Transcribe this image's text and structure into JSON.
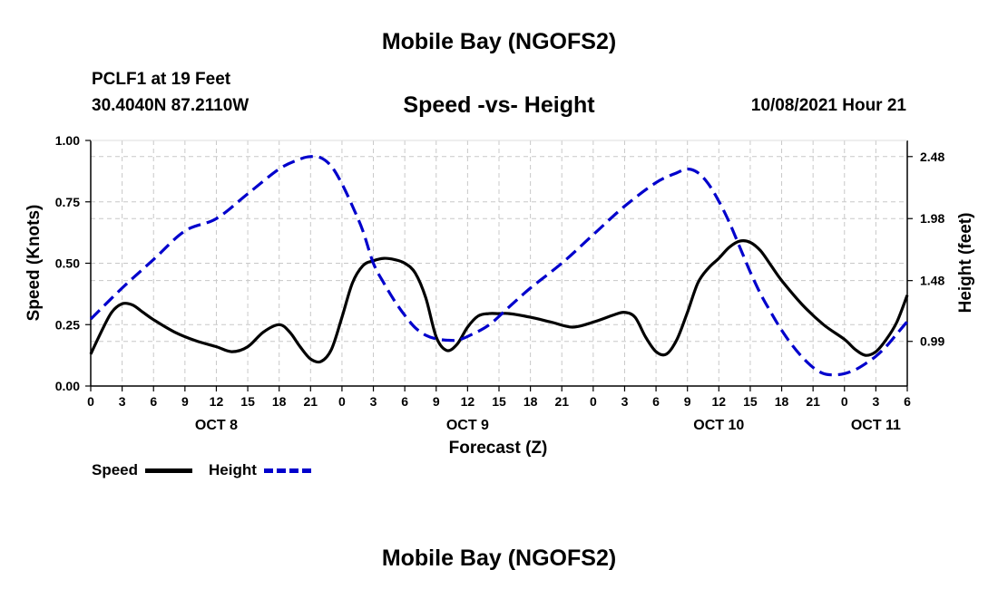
{
  "header": {
    "top_title": "Mobile Bay (NGOFS2)",
    "station": "PCLF1 at 19 Feet",
    "coords": "30.4040N  87.2110W",
    "plot_title": "Speed -vs- Height",
    "valid_time": "10/08/2021 Hour 21",
    "bottom_title": "Mobile Bay (NGOFS2)"
  },
  "legend": {
    "speed_label": "Speed",
    "height_label": "Height"
  },
  "colors": {
    "speed": "#000000",
    "height": "#0000cc",
    "grid": "#c8c8c8"
  },
  "chart_data": {
    "type": "line",
    "title": "Speed -vs- Height",
    "xlabel": "Forecast (Z)",
    "ylabel": "Speed (Knots)",
    "y2label": "Height (feet)",
    "xlim": [
      0,
      78
    ],
    "ylim": [
      0,
      1.0
    ],
    "y2lim": [
      0.63,
      2.61
    ],
    "grid": true,
    "x_ticks": [
      0,
      3,
      6,
      9,
      12,
      15,
      18,
      21,
      24,
      27,
      30,
      33,
      36,
      39,
      42,
      45,
      48,
      51,
      54,
      57,
      60,
      63,
      66,
      69,
      72,
      75,
      78
    ],
    "x_tick_labels": [
      "0",
      "3",
      "6",
      "9",
      "12",
      "15",
      "18",
      "21",
      "0",
      "3",
      "6",
      "9",
      "12",
      "15",
      "18",
      "21",
      "0",
      "3",
      "6",
      "9",
      "12",
      "15",
      "18",
      "21",
      "0",
      "3",
      "6"
    ],
    "day_labels": [
      {
        "x": 12,
        "label": "OCT 8"
      },
      {
        "x": 36,
        "label": "OCT 9"
      },
      {
        "x": 60,
        "label": "OCT 10"
      },
      {
        "x": 75,
        "label": "OCT 11"
      }
    ],
    "y_ticks": [
      0,
      0.25,
      0.5,
      0.75,
      1.0
    ],
    "y_tick_labels": [
      "0.00",
      "0.25",
      "0.50",
      "0.75",
      "1.00"
    ],
    "y2_ticks": [
      0.99,
      1.48,
      1.98,
      2.48
    ],
    "y2_tick_labels": [
      "0.99",
      "1.48",
      "1.98",
      "2.48"
    ],
    "series": [
      {
        "name": "Speed",
        "axis": "left",
        "style": "solid",
        "x": [
          0,
          1,
          2,
          3,
          4,
          5,
          6,
          8,
          10,
          12,
          13.5,
          15,
          16.5,
          18,
          19,
          20,
          21,
          22,
          23,
          24,
          25,
          26,
          27,
          28,
          29,
          30,
          31,
          32,
          33,
          34,
          35,
          36,
          37,
          38,
          39,
          40,
          42,
          44,
          46,
          48,
          50,
          51,
          52,
          53,
          54,
          55,
          56,
          57,
          58,
          59,
          60,
          61,
          62,
          63,
          64,
          65,
          66,
          68,
          70,
          72,
          73,
          74,
          75,
          76,
          77,
          78
        ],
        "y": [
          0.13,
          0.22,
          0.3,
          0.335,
          0.33,
          0.3,
          0.27,
          0.22,
          0.185,
          0.16,
          0.14,
          0.16,
          0.22,
          0.25,
          0.22,
          0.16,
          0.11,
          0.1,
          0.15,
          0.28,
          0.42,
          0.49,
          0.51,
          0.52,
          0.515,
          0.5,
          0.46,
          0.36,
          0.2,
          0.145,
          0.17,
          0.24,
          0.285,
          0.295,
          0.295,
          0.295,
          0.28,
          0.26,
          0.24,
          0.26,
          0.29,
          0.3,
          0.28,
          0.2,
          0.14,
          0.13,
          0.19,
          0.3,
          0.42,
          0.48,
          0.52,
          0.565,
          0.59,
          0.585,
          0.55,
          0.49,
          0.43,
          0.33,
          0.25,
          0.19,
          0.15,
          0.125,
          0.14,
          0.19,
          0.26,
          0.37
        ]
      },
      {
        "name": "Height",
        "axis": "right",
        "style": "dashed",
        "x": [
          0,
          3,
          6,
          9,
          12,
          15,
          18,
          20,
          21,
          22,
          23,
          24,
          25,
          26,
          27,
          28,
          29,
          30,
          31,
          32,
          33,
          34,
          35,
          36,
          38,
          40,
          42,
          45,
          48,
          51,
          54,
          56,
          57,
          58,
          59,
          60,
          61,
          62,
          63,
          64,
          65,
          66,
          67,
          68,
          69,
          70,
          71,
          72,
          73,
          74,
          75,
          76,
          77,
          78
        ],
        "y": [
          1.17,
          1.42,
          1.65,
          1.88,
          1.98,
          2.18,
          2.38,
          2.46,
          2.48,
          2.47,
          2.4,
          2.26,
          2.08,
          1.88,
          1.62,
          1.46,
          1.32,
          1.2,
          1.1,
          1.04,
          1.01,
          1.0,
          1.0,
          1.03,
          1.12,
          1.27,
          1.42,
          1.62,
          1.85,
          2.08,
          2.27,
          2.35,
          2.38,
          2.35,
          2.26,
          2.12,
          1.95,
          1.75,
          1.55,
          1.37,
          1.22,
          1.08,
          0.96,
          0.86,
          0.78,
          0.73,
          0.72,
          0.73,
          0.76,
          0.81,
          0.87,
          0.95,
          1.05,
          1.15
        ]
      }
    ]
  }
}
